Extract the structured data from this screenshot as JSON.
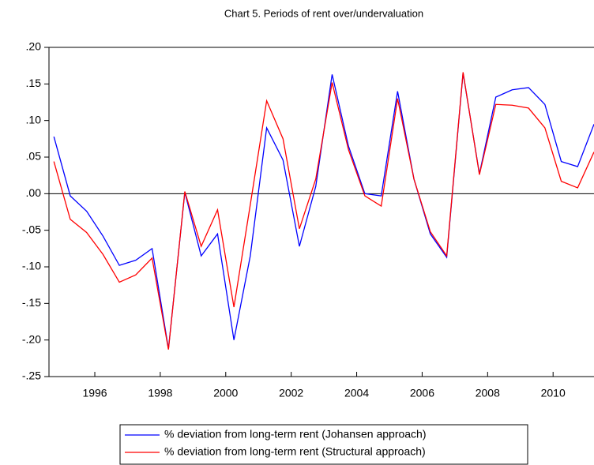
{
  "chart_data": {
    "type": "line",
    "title": "Chart 5. Periods of rent over/undervaluation",
    "x": [
      1994.75,
      1995.25,
      1995.75,
      1996.25,
      1996.75,
      1997.25,
      1997.75,
      1998.25,
      1998.75,
      1999.25,
      1999.75,
      2000.25,
      2000.75,
      2001.25,
      2001.75,
      2002.25,
      2002.75,
      2003.25,
      2003.75,
      2004.25,
      2004.75,
      2005.25,
      2005.75,
      2006.25,
      2006.75,
      2007.25,
      2007.75,
      2008.25,
      2008.75,
      2009.25,
      2009.75,
      2010.25,
      2010.75,
      2011.25
    ],
    "series": [
      {
        "name": "% deviation from long-term rent (Johansen approach)",
        "color": "#0000ff",
        "values": [
          0.078,
          -0.003,
          -0.024,
          -0.058,
          -0.098,
          -0.091,
          -0.075,
          -0.212,
          0.002,
          -0.085,
          -0.055,
          -0.2,
          -0.085,
          0.09,
          0.046,
          -0.072,
          0.01,
          0.163,
          0.065,
          0.0,
          -0.003,
          0.14,
          0.02,
          -0.055,
          -0.087,
          0.165,
          0.027,
          0.132,
          0.142,
          0.145,
          0.122,
          0.044,
          0.037,
          0.095
        ]
      },
      {
        "name": "% deviation from long-term rent (Structural approach)",
        "color": "#ff0000",
        "values": [
          0.044,
          -0.035,
          -0.053,
          -0.083,
          -0.121,
          -0.111,
          -0.088,
          -0.213,
          0.003,
          -0.072,
          -0.022,
          -0.155,
          -0.015,
          0.127,
          0.075,
          -0.048,
          0.02,
          0.152,
          0.06,
          -0.003,
          -0.017,
          0.13,
          0.02,
          -0.052,
          -0.085,
          0.166,
          0.026,
          0.122,
          0.121,
          0.117,
          0.09,
          0.017,
          0.008,
          0.057
        ]
      }
    ],
    "xlim": [
      1994.6,
      2011.25
    ],
    "xticks": [
      1996,
      1998,
      2000,
      2002,
      2004,
      2006,
      2008,
      2010
    ],
    "ylim": [
      -0.25,
      0.2
    ],
    "yticks": [
      {
        "value": -0.25,
        "label": "-.25"
      },
      {
        "value": -0.2,
        "label": "-.20"
      },
      {
        "value": -0.15,
        "label": "-.15"
      },
      {
        "value": -0.1,
        "label": "-.10"
      },
      {
        "value": -0.05,
        "label": "-.05"
      },
      {
        "value": 0,
        "label": ".00"
      },
      {
        "value": 0.05,
        "label": ".05"
      },
      {
        "value": 0.1,
        "label": ".10"
      },
      {
        "value": 0.15,
        "label": ".15"
      },
      {
        "value": 0.2,
        "label": ".20"
      }
    ],
    "zero_line": true,
    "legend": "bottom"
  }
}
